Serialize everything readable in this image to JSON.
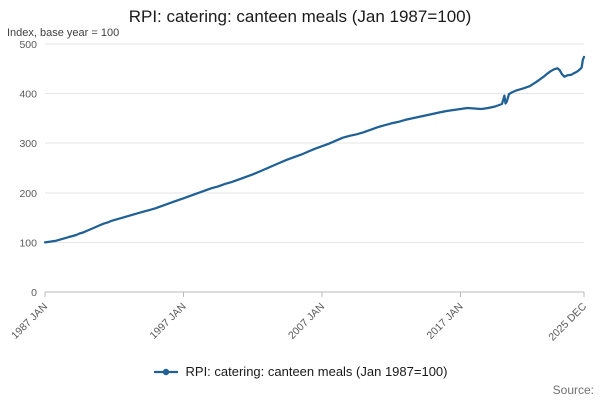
{
  "page": {
    "title": "RPI: catering: canteen meals (Jan 1987=100)",
    "subtitle": "Index, base year = 100",
    "source_label": "Source:"
  },
  "legend": {
    "label": "RPI: catering: canteen meals (Jan 1987=100)"
  },
  "colors": {
    "line": "#206095",
    "grid": "#e6e6e6",
    "axis": "#b8b8b8",
    "tick_text": "#595959"
  },
  "chart_data": {
    "type": "line",
    "title": "RPI: catering: canteen meals (Jan 1987=100)",
    "ylabel": "Index, base year = 100",
    "grid": true,
    "legend_position": "bottom",
    "x_start": 1987.0,
    "x_end": 2025.917,
    "ylim": [
      0,
      500
    ],
    "yticks": [
      0,
      100,
      200,
      300,
      400,
      500
    ],
    "xticks": [
      {
        "x": 1987.0,
        "label": "1987 JAN"
      },
      {
        "x": 1997.0,
        "label": "1997 JAN"
      },
      {
        "x": 2007.0,
        "label": "2007 JAN"
      },
      {
        "x": 2017.0,
        "label": "2017 JAN"
      },
      {
        "x": 2025.917,
        "label": "2025 DEC"
      }
    ],
    "series": [
      {
        "name": "RPI: catering: canteen meals (Jan 1987=100)",
        "color": "#206095",
        "points": [
          [
            1987.0,
            100
          ],
          [
            1987.25,
            101
          ],
          [
            1987.5,
            102
          ],
          [
            1987.75,
            103
          ],
          [
            1988.0,
            105
          ],
          [
            1988.25,
            107
          ],
          [
            1988.5,
            109
          ],
          [
            1988.75,
            111
          ],
          [
            1989.0,
            113
          ],
          [
            1989.25,
            115
          ],
          [
            1989.5,
            118
          ],
          [
            1989.75,
            120
          ],
          [
            1990.0,
            123
          ],
          [
            1990.25,
            126
          ],
          [
            1990.5,
            129
          ],
          [
            1990.75,
            132
          ],
          [
            1991.0,
            135
          ],
          [
            1991.25,
            138
          ],
          [
            1991.5,
            140
          ],
          [
            1991.75,
            143
          ],
          [
            1992.0,
            145
          ],
          [
            1992.25,
            147
          ],
          [
            1992.5,
            149
          ],
          [
            1992.75,
            151
          ],
          [
            1993.0,
            153
          ],
          [
            1993.5,
            157
          ],
          [
            1994.0,
            161
          ],
          [
            1994.5,
            165
          ],
          [
            1995.0,
            169
          ],
          [
            1995.5,
            174
          ],
          [
            1996.0,
            179
          ],
          [
            1996.5,
            184
          ],
          [
            1997.0,
            189
          ],
          [
            1997.5,
            194
          ],
          [
            1998.0,
            199
          ],
          [
            1998.5,
            204
          ],
          [
            1999.0,
            209
          ],
          [
            1999.5,
            213
          ],
          [
            2000.0,
            218
          ],
          [
            2000.5,
            222
          ],
          [
            2001.0,
            227
          ],
          [
            2001.5,
            232
          ],
          [
            2002.0,
            237
          ],
          [
            2002.5,
            243
          ],
          [
            2003.0,
            249
          ],
          [
            2003.5,
            255
          ],
          [
            2004.0,
            261
          ],
          [
            2004.5,
            267
          ],
          [
            2005.0,
            272
          ],
          [
            2005.5,
            277
          ],
          [
            2006.0,
            283
          ],
          [
            2006.5,
            289
          ],
          [
            2007.0,
            294
          ],
          [
            2007.5,
            299
          ],
          [
            2008.0,
            305
          ],
          [
            2008.5,
            311
          ],
          [
            2009.0,
            315
          ],
          [
            2009.5,
            318
          ],
          [
            2010.0,
            322
          ],
          [
            2010.5,
            327
          ],
          [
            2011.0,
            332
          ],
          [
            2011.5,
            336
          ],
          [
            2012.0,
            340
          ],
          [
            2012.5,
            343
          ],
          [
            2013.0,
            347
          ],
          [
            2013.5,
            350
          ],
          [
            2014.0,
            353
          ],
          [
            2014.5,
            356
          ],
          [
            2015.0,
            359
          ],
          [
            2015.5,
            362
          ],
          [
            2016.0,
            365
          ],
          [
            2016.5,
            367
          ],
          [
            2017.0,
            369
          ],
          [
            2017.5,
            371
          ],
          [
            2018.0,
            370
          ],
          [
            2018.5,
            369
          ],
          [
            2019.0,
            371
          ],
          [
            2019.5,
            374
          ],
          [
            2020.0,
            379
          ],
          [
            2020.17,
            396
          ],
          [
            2020.25,
            380
          ],
          [
            2020.33,
            383
          ],
          [
            2020.5,
            399
          ],
          [
            2020.75,
            403
          ],
          [
            2021.0,
            406
          ],
          [
            2021.5,
            410
          ],
          [
            2022.0,
            415
          ],
          [
            2022.5,
            424
          ],
          [
            2023.0,
            434
          ],
          [
            2023.25,
            440
          ],
          [
            2023.5,
            445
          ],
          [
            2023.75,
            449
          ],
          [
            2024.0,
            451
          ],
          [
            2024.17,
            447
          ],
          [
            2024.33,
            439
          ],
          [
            2024.5,
            434
          ],
          [
            2024.75,
            437
          ],
          [
            2025.0,
            438
          ],
          [
            2025.17,
            441
          ],
          [
            2025.33,
            443
          ],
          [
            2025.5,
            446
          ],
          [
            2025.67,
            450
          ],
          [
            2025.75,
            453
          ],
          [
            2025.83,
            468
          ],
          [
            2025.917,
            474
          ]
        ]
      }
    ]
  }
}
